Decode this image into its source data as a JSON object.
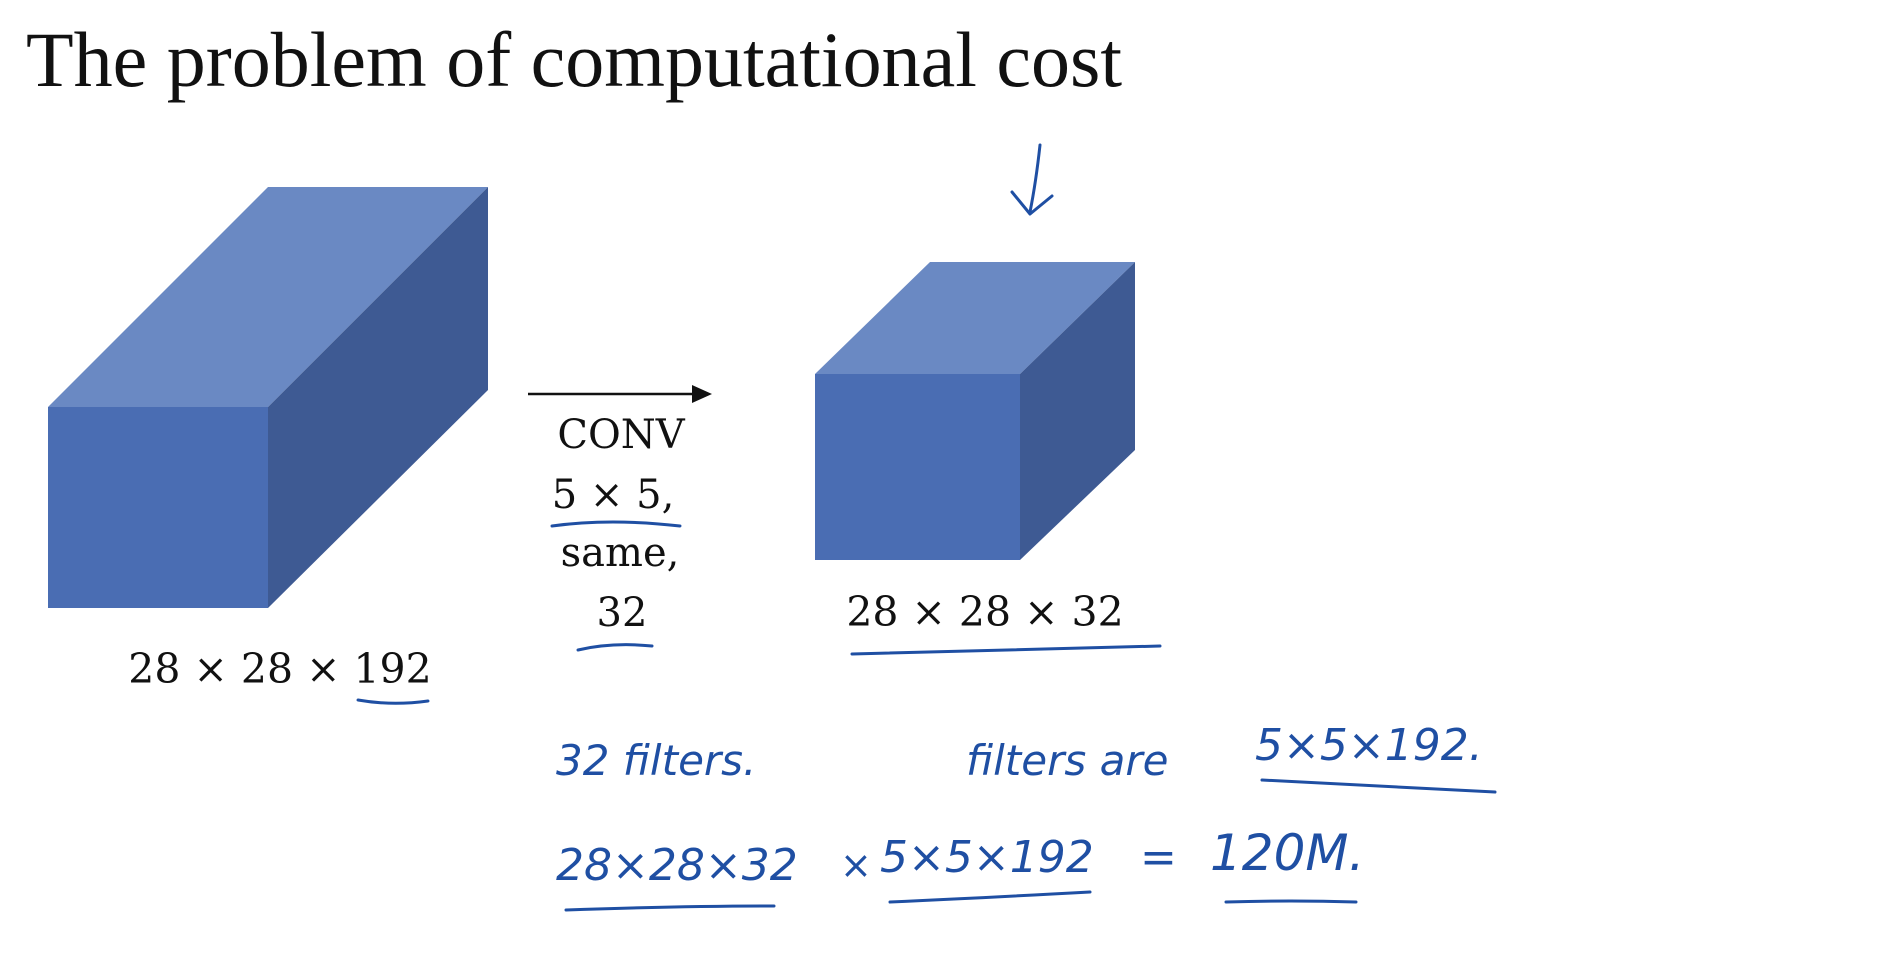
{
  "title": "The problem of computational cost",
  "input_volume": {
    "dims_label": "28 × 28 × 192",
    "face_front": "#4a6db3",
    "face_top": "#6a89c3",
    "face_side": "#3e5a93"
  },
  "conv_op": {
    "line1": "CONV",
    "line2": "5 × 5,",
    "line3": "same,",
    "line4": "32"
  },
  "output_volume": {
    "dims_label": "28 × 28 × 32",
    "face_front": "#4a6db3",
    "face_top": "#6a89c3",
    "face_side": "#3e5a93"
  },
  "annotations": {
    "ink_color": "#1f4fa3",
    "note_filters_count": "32 filters.",
    "note_filter_shape_prefix": "filters are",
    "note_filter_shape": "5×5×192.",
    "calc_output": "28×28×32",
    "calc_times": "×",
    "calc_filter": "5×5×192",
    "calc_equals": "=",
    "calc_result": "120M."
  }
}
